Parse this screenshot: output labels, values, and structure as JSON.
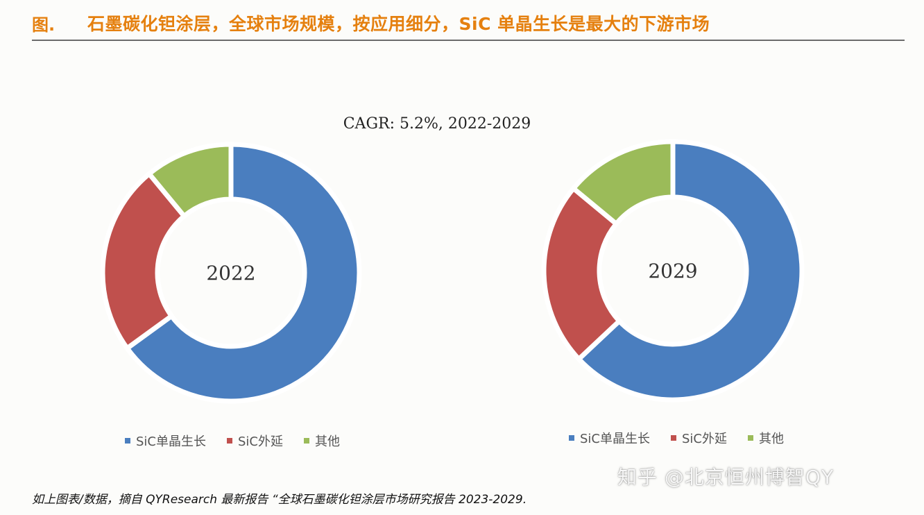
{
  "header": {
    "label": "图.",
    "title": "石墨碳化钽涂层，全球市场规模，按应用细分，SiC 单晶生长是最大的下游市场"
  },
  "colors": {
    "title": "#e5800f",
    "sic_crystal": "#4a7ebf",
    "sic_epitaxy": "#c0504d",
    "other": "#9bbb59"
  },
  "chart_data": [
    {
      "type": "donut",
      "title": "CAGR: 5.2%, 2022-2029",
      "center_label": "2022",
      "categories": [
        "SiC单晶生长",
        "SiC外延",
        "其他"
      ],
      "values": [
        65,
        24,
        11
      ],
      "legend_position": "bottom"
    },
    {
      "type": "donut",
      "title": "CAGR: 5.2%, 2022-2029",
      "center_label": "2029",
      "categories": [
        "SiC单晶生长",
        "SiC外延",
        "其他"
      ],
      "values": [
        63,
        23,
        14
      ],
      "legend_position": "bottom"
    }
  ],
  "subtitle": "CAGR: 5.2%, 2022-2029",
  "legend_left": [
    {
      "label": "SiC单晶生长",
      "color": "#4a7ebf"
    },
    {
      "label": "SiC外延",
      "color": "#c0504d"
    },
    {
      "label": "其他",
      "color": "#9bbb59"
    }
  ],
  "legend_right": [
    {
      "label": "SiC单晶生长",
      "color": "#4a7ebf"
    },
    {
      "label": "SiC外延",
      "color": "#c0504d"
    },
    {
      "label": "其他",
      "color": "#9bbb59"
    }
  ],
  "source": "如上图表/数据，摘自 QYResearch 最新报告 “全球石墨碳化钽涂层市场研究报告 2023-2029.",
  "watermark": "知乎 @北京恒州博智QY"
}
